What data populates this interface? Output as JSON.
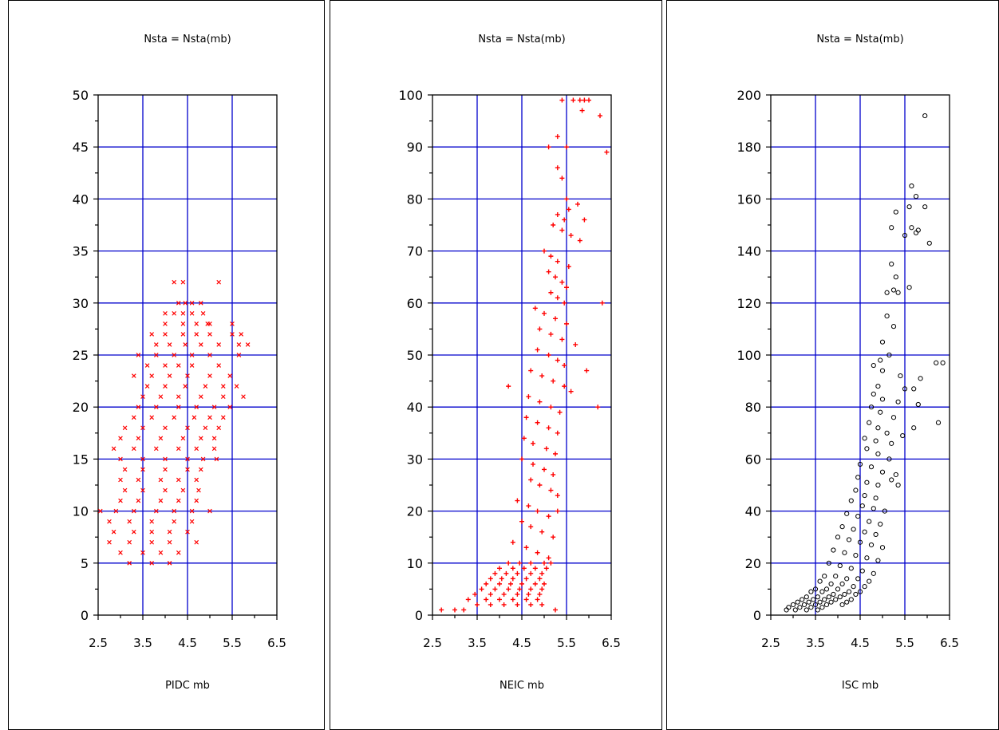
{
  "chart_data": [
    {
      "type": "scatter",
      "title": "Nsta = Nsta(mb)",
      "xlabel": "PIDC mb",
      "ylabel": "",
      "xlim": [
        2.5,
        6.5
      ],
      "ylim": [
        0,
        50
      ],
      "xticks": [
        "2.5",
        "3.5",
        "4.5",
        "5.5",
        "6.5"
      ],
      "yticks": [
        "0",
        "5",
        "10",
        "15",
        "20",
        "25",
        "30",
        "35",
        "40",
        "45",
        "50"
      ],
      "grid_x": [
        3.5,
        4.5,
        5.5
      ],
      "grid_y": [
        5,
        10,
        15,
        20,
        25,
        30,
        35,
        40,
        45
      ],
      "marker": "x",
      "marker_color": "#ff0000",
      "grid_color": "#0000cc",
      "series": [
        {
          "x": [
            4.2,
            4.4,
            5.2,
            4.3,
            4.45,
            4.6,
            4.8,
            4.0,
            4.2,
            4.4,
            4.6,
            4.85,
            4.0,
            4.4,
            4.7,
            4.95,
            5.0,
            5.5,
            3.7,
            4.0,
            4.4,
            4.7,
            5.0,
            5.5,
            5.7,
            3.8,
            4.1,
            4.45,
            4.8,
            5.2,
            5.65,
            5.85,
            3.4,
            3.8,
            4.2,
            4.6,
            5.0,
            5.65,
            3.6,
            4.0,
            4.3,
            4.6,
            5.2,
            3.3,
            3.7,
            4.1,
            4.5,
            5.0,
            5.45,
            3.6,
            4.0,
            4.45,
            4.9,
            5.3,
            5.6,
            3.5,
            3.9,
            4.3,
            4.8,
            5.3,
            5.75,
            3.4,
            3.8,
            4.3,
            4.7,
            5.1,
            5.45,
            3.3,
            3.7,
            4.2,
            4.65,
            5.0,
            5.3,
            3.1,
            3.5,
            4.0,
            4.5,
            4.9,
            5.2,
            3.0,
            3.4,
            3.9,
            4.4,
            4.8,
            5.1,
            2.85,
            3.3,
            3.8,
            4.3,
            4.7,
            5.1,
            3.0,
            3.5,
            4.0,
            4.5,
            4.85,
            5.15,
            3.1,
            3.5,
            4.0,
            4.5,
            4.8,
            3.0,
            3.4,
            3.9,
            4.3,
            4.7,
            3.1,
            3.5,
            4.0,
            4.4,
            4.75,
            3.0,
            3.4,
            3.9,
            4.3,
            4.7,
            2.55,
            2.9,
            3.3,
            3.8,
            4.2,
            4.6,
            5.0,
            2.75,
            3.2,
            3.7,
            4.2,
            4.6,
            2.85,
            3.3,
            3.7,
            4.1,
            4.5,
            2.75,
            3.2,
            3.7,
            4.1,
            4.7,
            3.0,
            3.5,
            3.9,
            4.3,
            3.2,
            3.7,
            4.1
          ],
          "y": [
            32,
            32,
            32,
            30,
            30,
            30,
            30,
            29,
            29,
            29,
            29,
            29,
            28,
            28,
            28,
            28,
            28,
            28,
            27,
            27,
            27,
            27,
            27,
            27,
            27,
            26,
            26,
            26,
            26,
            26,
            26,
            26,
            25,
            25,
            25,
            25,
            25,
            25,
            24,
            24,
            24,
            24,
            24,
            23,
            23,
            23,
            23,
            23,
            23,
            22,
            22,
            22,
            22,
            22,
            22,
            21,
            21,
            21,
            21,
            21,
            21,
            20,
            20,
            20,
            20,
            20,
            20,
            19,
            19,
            19,
            19,
            19,
            19,
            18,
            18,
            18,
            18,
            18,
            18,
            17,
            17,
            17,
            17,
            17,
            17,
            16,
            16,
            16,
            16,
            16,
            16,
            15,
            15,
            15,
            15,
            15,
            15,
            14,
            14,
            14,
            14,
            14,
            13,
            13,
            13,
            13,
            13,
            12,
            12,
            12,
            12,
            12,
            11,
            11,
            11,
            11,
            11,
            10,
            10,
            10,
            10,
            10,
            10,
            10,
            9,
            9,
            9,
            9,
            9,
            8,
            8,
            8,
            8,
            8,
            7,
            7,
            7,
            7,
            7,
            6,
            6,
            6,
            6,
            5,
            5,
            5
          ]
        }
      ]
    },
    {
      "type": "scatter",
      "title": "Nsta = Nsta(mb)",
      "xlabel": "NEIC mb",
      "ylabel": "",
      "xlim": [
        2.5,
        6.5
      ],
      "ylim": [
        0,
        100
      ],
      "xticks": [
        "2.5",
        "3.5",
        "4.5",
        "5.5",
        "6.5"
      ],
      "yticks": [
        "0",
        "10",
        "20",
        "30",
        "40",
        "50",
        "60",
        "70",
        "80",
        "90",
        "100"
      ],
      "grid_x": [
        3.5,
        4.5,
        5.5
      ],
      "grid_y": [
        10,
        20,
        30,
        40,
        50,
        60,
        70,
        80,
        90
      ],
      "marker": "+",
      "marker_color": "#ff0000",
      "grid_color": "#0000cc",
      "series": [
        {
          "x": [
            5.4,
            5.65,
            5.8,
            5.9,
            6.0,
            5.85,
            6.25,
            5.3,
            5.5,
            6.4,
            5.1,
            5.3,
            5.4,
            5.5,
            5.75,
            5.55,
            5.3,
            5.45,
            5.9,
            5.2,
            5.4,
            5.6,
            5.8,
            5.0,
            5.15,
            5.3,
            5.55,
            5.1,
            5.25,
            5.4,
            5.5,
            5.15,
            5.3,
            5.45,
            4.8,
            5.0,
            5.25,
            5.5,
            6.3,
            4.9,
            5.15,
            5.4,
            5.7,
            4.85,
            5.1,
            5.3,
            5.45,
            4.7,
            4.95,
            5.2,
            5.45,
            5.6,
            5.95,
            4.65,
            4.9,
            5.15,
            5.35,
            6.2,
            4.6,
            4.85,
            5.1,
            5.3,
            4.2,
            4.55,
            4.75,
            5.05,
            5.25,
            4.5,
            4.75,
            5.0,
            5.2,
            4.7,
            4.9,
            5.15,
            5.3,
            4.4,
            4.65,
            4.85,
            5.1,
            5.3,
            4.5,
            4.7,
            4.95,
            5.2,
            4.3,
            4.6,
            4.85,
            5.1,
            4.2,
            4.45,
            4.7,
            5.0,
            5.15,
            4.0,
            4.3,
            4.55,
            4.8,
            5.05,
            3.9,
            4.15,
            4.4,
            4.7,
            4.95,
            3.8,
            4.05,
            4.3,
            4.6,
            4.9,
            3.7,
            4.0,
            4.25,
            4.5,
            4.8,
            5.0,
            3.6,
            3.9,
            4.2,
            4.45,
            4.7,
            4.95,
            3.45,
            3.8,
            4.1,
            4.4,
            4.65,
            4.9,
            3.3,
            3.7,
            4.0,
            4.3,
            4.6,
            4.85,
            2.7,
            3.0,
            3.2,
            3.5,
            3.8,
            4.1,
            4.4,
            4.7,
            4.95,
            5.25
          ],
          "y": [
            99,
            99,
            99,
            99,
            99,
            97,
            96,
            92,
            90,
            89,
            90,
            86,
            84,
            80,
            79,
            78,
            77,
            76,
            76,
            75,
            74,
            73,
            72,
            70,
            69,
            68,
            67,
            66,
            65,
            64,
            63,
            62,
            61,
            60,
            59,
            58,
            57,
            56,
            60,
            55,
            54,
            53,
            52,
            51,
            50,
            49,
            48,
            47,
            46,
            45,
            44,
            43,
            47,
            42,
            41,
            40,
            39,
            40,
            38,
            37,
            36,
            35,
            44,
            34,
            33,
            32,
            31,
            30,
            29,
            28,
            27,
            26,
            25,
            24,
            23,
            22,
            21,
            20,
            19,
            20,
            18,
            17,
            16,
            15,
            14,
            13,
            12,
            11,
            10,
            10,
            10,
            10,
            10,
            9,
            9,
            9,
            9,
            9,
            8,
            8,
            8,
            8,
            8,
            7,
            7,
            7,
            7,
            7,
            6,
            6,
            6,
            6,
            6,
            6,
            5,
            5,
            5,
            5,
            5,
            5,
            4,
            4,
            4,
            4,
            4,
            4,
            3,
            3,
            3,
            3,
            3,
            3,
            1,
            1,
            1,
            2,
            2,
            2,
            2,
            2,
            2,
            1
          ]
        }
      ]
    },
    {
      "type": "scatter",
      "title": "Nsta = Nsta(mb)",
      "xlabel": "ISC mb",
      "ylabel": "",
      "xlim": [
        2.5,
        6.5
      ],
      "ylim": [
        0,
        200
      ],
      "xticks": [
        "2.5",
        "3.5",
        "4.5",
        "5.5",
        "6.5"
      ],
      "yticks": [
        "0",
        "20",
        "40",
        "60",
        "80",
        "100",
        "120",
        "140",
        "160",
        "180",
        "200"
      ],
      "grid_x": [
        3.5,
        4.5,
        5.5
      ],
      "grid_y": [
        20,
        40,
        60,
        80,
        100,
        120,
        140,
        160,
        180
      ],
      "marker": "o",
      "marker_color": "#000000",
      "grid_color": "#0000cc",
      "series": [
        {
          "x": [
            5.95,
            5.65,
            5.75,
            5.3,
            5.6,
            5.95,
            5.2,
            5.65,
            5.75,
            6.05,
            5.5,
            5.8,
            5.2,
            5.3,
            5.6,
            5.25,
            5.1,
            5.35,
            5.1,
            5.25,
            5.0,
            5.15,
            4.95,
            6.2,
            6.35,
            4.8,
            5.0,
            5.4,
            5.85,
            4.9,
            5.5,
            5.7,
            4.8,
            5.0,
            5.35,
            5.8,
            4.75,
            4.95,
            5.25,
            6.25,
            4.7,
            4.9,
            5.1,
            5.7,
            4.6,
            4.85,
            5.2,
            5.45,
            4.65,
            4.9,
            5.15,
            4.5,
            4.75,
            5.0,
            5.3,
            4.45,
            4.65,
            4.9,
            5.2,
            4.4,
            4.6,
            4.85,
            5.35,
            4.3,
            4.55,
            4.8,
            5.05,
            4.2,
            4.45,
            4.7,
            4.95,
            4.1,
            4.35,
            4.6,
            4.85,
            4.0,
            4.25,
            4.5,
            4.75,
            5.0,
            3.9,
            4.15,
            4.4,
            4.65,
            4.9,
            3.8,
            4.05,
            4.3,
            4.55,
            4.8,
            3.7,
            3.95,
            4.2,
            4.45,
            4.7,
            3.6,
            3.85,
            4.1,
            4.35,
            4.6,
            3.5,
            3.75,
            4.0,
            4.25,
            4.5,
            3.4,
            3.65,
            3.9,
            4.15,
            4.4,
            3.3,
            3.55,
            3.8,
            4.05,
            4.3,
            3.2,
            3.45,
            3.7,
            3.95,
            4.2,
            3.1,
            3.35,
            3.6,
            3.85,
            4.1,
            3.0,
            3.25,
            3.5,
            3.75,
            2.9,
            3.15,
            3.4,
            3.65,
            2.85,
            3.05,
            3.3,
            3.55
          ],
          "y": [
            192,
            165,
            161,
            155,
            157,
            157,
            149,
            149,
            147,
            143,
            146,
            148,
            135,
            130,
            126,
            125,
            124,
            124,
            115,
            111,
            105,
            100,
            98,
            97,
            97,
            96,
            94,
            92,
            91,
            88,
            87,
            87,
            85,
            83,
            82,
            81,
            80,
            78,
            76,
            74,
            74,
            72,
            70,
            72,
            68,
            67,
            66,
            69,
            64,
            62,
            60,
            58,
            57,
            55,
            54,
            53,
            51,
            50,
            52,
            48,
            46,
            45,
            50,
            44,
            42,
            41,
            40,
            39,
            38,
            36,
            35,
            34,
            33,
            32,
            31,
            30,
            29,
            28,
            27,
            26,
            25,
            24,
            23,
            22,
            21,
            20,
            19,
            18,
            17,
            16,
            15,
            15,
            14,
            14,
            13,
            13,
            12,
            12,
            11,
            11,
            10,
            10,
            10,
            9,
            9,
            9,
            9,
            8,
            8,
            8,
            7,
            7,
            7,
            7,
            6,
            6,
            6,
            6,
            6,
            5,
            5,
            5,
            5,
            5,
            4,
            4,
            4,
            4,
            4,
            3,
            3,
            3,
            3,
            2,
            2,
            2,
            2
          ]
        }
      ]
    }
  ]
}
